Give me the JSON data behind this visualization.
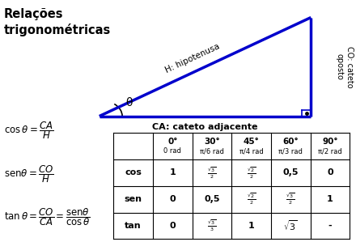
{
  "title": "Relações\ntrigonométricas",
  "triangle_color": "#0000CC",
  "triangle_lw": 2.5,
  "label_hypotenuse": "H: hipotenusa",
  "label_adjacent": "CA: cateto adjacente",
  "label_opposite_line1": "CO: cateto",
  "label_opposite_line2": "oposto",
  "label_theta": "θ",
  "col_headers_deg": [
    "0°",
    "30°",
    "45°",
    "60°",
    "90°"
  ],
  "col_headers_rad": [
    "0 rad",
    "π/6 rad",
    "π/4 rad",
    "π/3 rad",
    "π/2 rad"
  ],
  "row_headers": [
    "cos",
    "sen",
    "tan"
  ],
  "background_color": "#ffffff",
  "text_color": "#000000",
  "blue_color": "#0000CC"
}
